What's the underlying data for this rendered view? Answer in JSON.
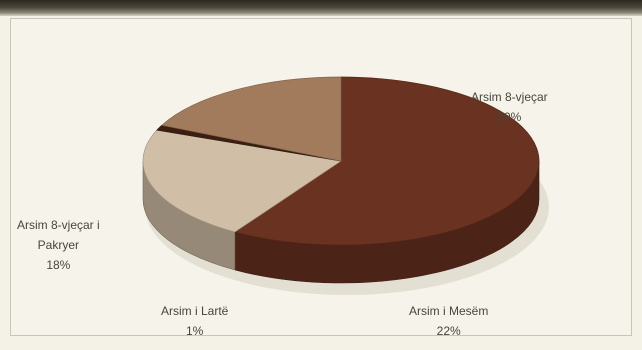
{
  "chart_data": {
    "type": "pie",
    "title": "",
    "slices": [
      {
        "label": "Arsim 8-vjeçar",
        "value": 59,
        "display": "59%",
        "color": "#6a3220"
      },
      {
        "label": "Arsim i Mesëm",
        "value": 22,
        "display": "22%",
        "color": "#d0bea6"
      },
      {
        "label": "Arsim i Lartë",
        "value": 1,
        "display": "1%",
        "color": "#3b2012"
      },
      {
        "label": "Arsim 8-vjeçar i Pakryer",
        "value": 18,
        "display": "18%",
        "color": "#a27a5c"
      }
    ],
    "labels_text": {
      "s0_line1": "Arsim 8-vjeçar",
      "s1_line1": "Arsim i Mesëm",
      "s2_line1": "Arsim i Lartë",
      "s3_line1": "Arsim 8-vjeçar i",
      "s3_line2": "Pakryer"
    }
  }
}
